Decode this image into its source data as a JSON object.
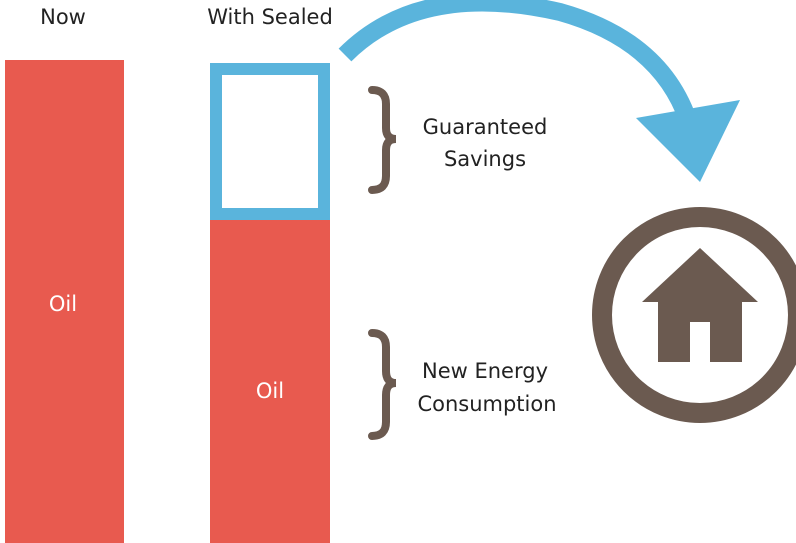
{
  "columns": [
    {
      "heading": "Now",
      "label": "Oil"
    },
    {
      "heading": "With Sealed",
      "label": "Oil"
    }
  ],
  "braces": [
    {
      "lines": [
        "Guaranteed",
        "Savings"
      ]
    },
    {
      "lines": [
        "New Energy",
        "Consumption"
      ]
    }
  ]
}
